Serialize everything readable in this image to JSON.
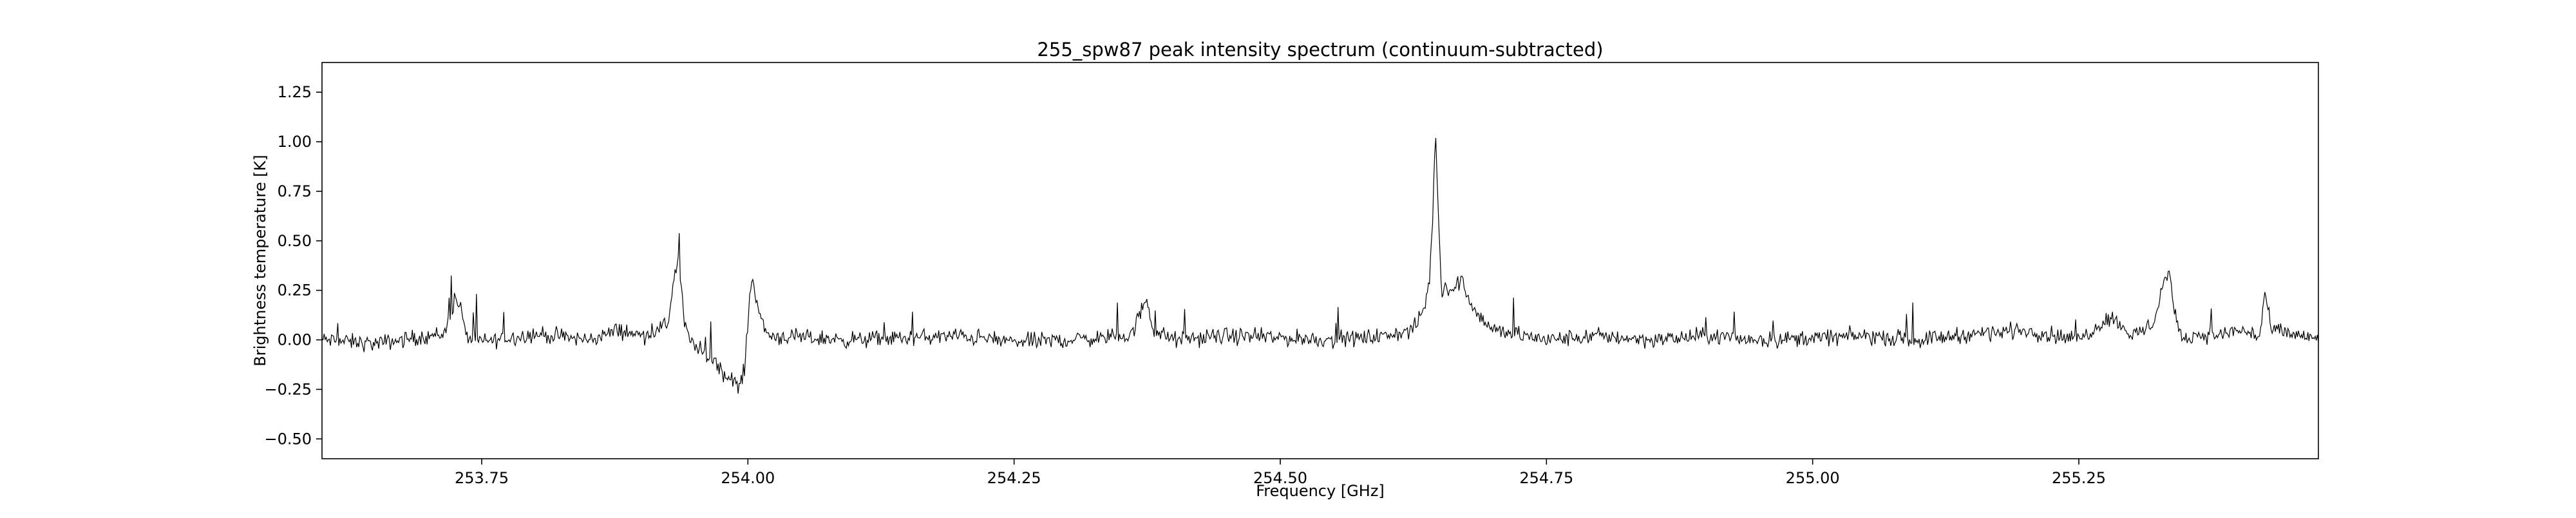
{
  "chart_data": {
    "type": "line",
    "title": "255_spw87 peak intensity spectrum (continuum-subtracted)",
    "xlabel": "Frequency [GHz]",
    "ylabel": "Brightness temperature [K]",
    "xlim": [
      253.6,
      255.475
    ],
    "ylim": [
      -0.6,
      1.4
    ],
    "xticks": [
      253.75,
      254.0,
      254.25,
      254.5,
      254.75,
      255.0,
      255.25
    ],
    "xtick_labels": [
      "253.75",
      "254.00",
      "254.25",
      "254.50",
      "254.75",
      "255.00",
      "255.25"
    ],
    "yticks": [
      -0.5,
      -0.25,
      0.0,
      0.25,
      0.5,
      0.75,
      1.0,
      1.25
    ],
    "ytick_labels": [
      "−0.50",
      "−0.25",
      "0.00",
      "0.25",
      "0.50",
      "0.75",
      "1.00",
      "1.25"
    ],
    "grid": false,
    "legend": "none",
    "line_color": "#000000",
    "series": [
      {
        "x": [
          253.6,
          253.65,
          253.7,
          253.715,
          253.725,
          253.73,
          253.735,
          253.75,
          253.8,
          253.85,
          253.88,
          253.9,
          253.925,
          253.93,
          253.935,
          253.94,
          253.945,
          253.96,
          253.97,
          253.98,
          253.985,
          253.99,
          253.997,
          254.002,
          254.005,
          254.008,
          254.012,
          254.02,
          254.05,
          254.1,
          254.2,
          254.25,
          254.3,
          254.36,
          254.375,
          254.38,
          254.4,
          254.45,
          254.5,
          254.55,
          254.6,
          254.625,
          254.635,
          254.64,
          254.643,
          254.646,
          254.649,
          254.652,
          254.655,
          254.66,
          254.67,
          254.68,
          254.69,
          254.7,
          254.75,
          254.8,
          254.85,
          254.9,
          254.95,
          255.0,
          255.05,
          255.1,
          255.15,
          255.2,
          255.25,
          255.28,
          255.3,
          255.32,
          255.33,
          255.335,
          255.34,
          255.345,
          255.35,
          255.36,
          255.38,
          255.4,
          255.42,
          255.425,
          255.43,
          255.45,
          255.475
        ],
        "y": [
          0.0,
          -0.02,
          0.02,
          0.03,
          0.21,
          0.17,
          0.02,
          -0.01,
          0.03,
          0.0,
          0.05,
          0.02,
          0.08,
          0.3,
          0.41,
          0.1,
          0.0,
          -0.08,
          -0.1,
          -0.2,
          -0.18,
          -0.25,
          -0.15,
          0.25,
          0.3,
          0.22,
          0.1,
          0.02,
          0.01,
          0.0,
          0.02,
          -0.01,
          0.0,
          0.02,
          0.22,
          0.05,
          0.0,
          0.02,
          0.01,
          0.0,
          0.02,
          0.05,
          0.15,
          0.3,
          0.6,
          1.05,
          0.55,
          0.22,
          0.28,
          0.25,
          0.3,
          0.18,
          0.1,
          0.05,
          0.0,
          0.02,
          0.0,
          0.02,
          0.0,
          0.01,
          0.02,
          0.0,
          0.03,
          0.05,
          0.0,
          0.12,
          0.02,
          0.08,
          0.3,
          0.35,
          0.12,
          0.05,
          0.0,
          0.03,
          0.02,
          0.05,
          0.02,
          0.25,
          0.05,
          0.03,
          0.0
        ]
      }
    ]
  }
}
